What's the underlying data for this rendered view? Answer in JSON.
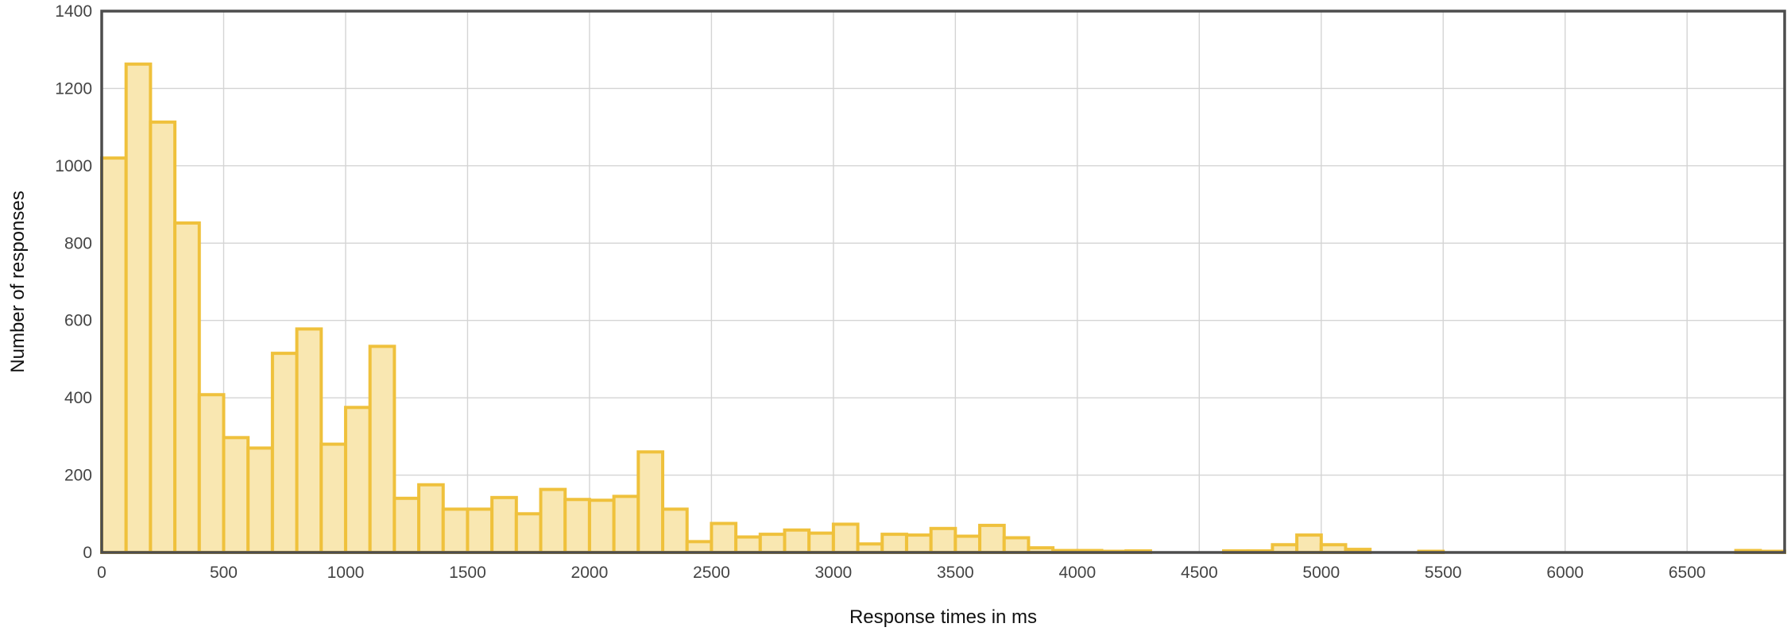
{
  "chart_data": {
    "type": "bar",
    "title": "",
    "xlabel": "Response times in ms",
    "ylabel": "Number of responses",
    "xlim": [
      0,
      6900
    ],
    "ylim": [
      0,
      1400
    ],
    "bin_width": 100,
    "grid": true,
    "legend": "none",
    "x_ticks": [
      0,
      500,
      1000,
      1500,
      2000,
      2500,
      3000,
      3500,
      4000,
      4500,
      5000,
      5500,
      6000,
      6500
    ],
    "y_ticks": [
      0,
      200,
      400,
      600,
      800,
      1000,
      1200,
      1400
    ],
    "colors": {
      "bar_fill": "#f9e7b1",
      "bar_stroke": "#efc13c",
      "frame": "#4d4d4d",
      "grid": "#d4d4d4"
    },
    "bins": [
      {
        "x": 0,
        "value": 1020
      },
      {
        "x": 100,
        "value": 1263
      },
      {
        "x": 200,
        "value": 1113
      },
      {
        "x": 300,
        "value": 852
      },
      {
        "x": 400,
        "value": 408
      },
      {
        "x": 500,
        "value": 297
      },
      {
        "x": 600,
        "value": 270
      },
      {
        "x": 700,
        "value": 515
      },
      {
        "x": 800,
        "value": 578
      },
      {
        "x": 900,
        "value": 280
      },
      {
        "x": 1000,
        "value": 375
      },
      {
        "x": 1100,
        "value": 533
      },
      {
        "x": 1200,
        "value": 140
      },
      {
        "x": 1300,
        "value": 175
      },
      {
        "x": 1400,
        "value": 112
      },
      {
        "x": 1500,
        "value": 112
      },
      {
        "x": 1600,
        "value": 142
      },
      {
        "x": 1700,
        "value": 100
      },
      {
        "x": 1800,
        "value": 163
      },
      {
        "x": 1900,
        "value": 137
      },
      {
        "x": 2000,
        "value": 135
      },
      {
        "x": 2100,
        "value": 145
      },
      {
        "x": 2200,
        "value": 260
      },
      {
        "x": 2300,
        "value": 112
      },
      {
        "x": 2400,
        "value": 28
      },
      {
        "x": 2500,
        "value": 75
      },
      {
        "x": 2600,
        "value": 40
      },
      {
        "x": 2700,
        "value": 47
      },
      {
        "x": 2800,
        "value": 58
      },
      {
        "x": 2900,
        "value": 50
      },
      {
        "x": 3000,
        "value": 73
      },
      {
        "x": 3100,
        "value": 22
      },
      {
        "x": 3200,
        "value": 47
      },
      {
        "x": 3300,
        "value": 45
      },
      {
        "x": 3400,
        "value": 62
      },
      {
        "x": 3500,
        "value": 42
      },
      {
        "x": 3600,
        "value": 70
      },
      {
        "x": 3700,
        "value": 38
      },
      {
        "x": 3800,
        "value": 12
      },
      {
        "x": 3900,
        "value": 5
      },
      {
        "x": 4000,
        "value": 5
      },
      {
        "x": 4100,
        "value": 3
      },
      {
        "x": 4200,
        "value": 4
      },
      {
        "x": 4600,
        "value": 4
      },
      {
        "x": 4700,
        "value": 4
      },
      {
        "x": 4800,
        "value": 20
      },
      {
        "x": 4900,
        "value": 45
      },
      {
        "x": 5000,
        "value": 20
      },
      {
        "x": 5100,
        "value": 8
      },
      {
        "x": 5400,
        "value": 3
      },
      {
        "x": 6700,
        "value": 5
      },
      {
        "x": 6800,
        "value": 3
      }
    ]
  }
}
